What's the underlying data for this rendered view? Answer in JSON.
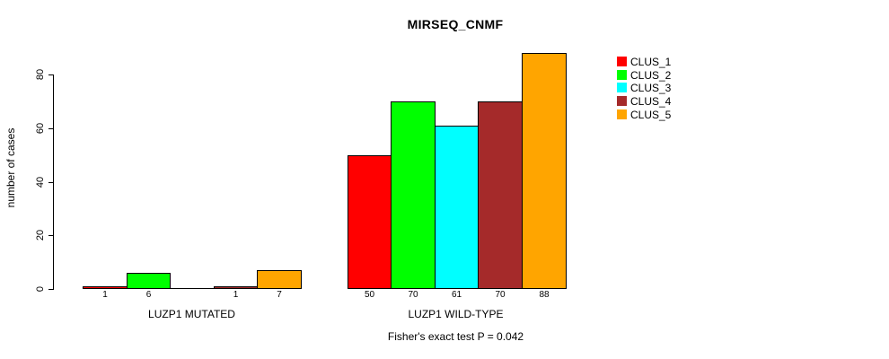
{
  "chart_data": {
    "type": "bar",
    "title": "MIRSEQ_CNMF",
    "ylabel": "number of cases",
    "xlabel": "",
    "ylim": [
      0,
      88
    ],
    "yticks": [
      0,
      20,
      40,
      60,
      80
    ],
    "grid": false,
    "legend_position": "top-right",
    "series": [
      {
        "name": "CLUS_1",
        "color": "#FF0000",
        "values": [
          1,
          50
        ]
      },
      {
        "name": "CLUS_2",
        "color": "#00FF00",
        "values": [
          6,
          70
        ]
      },
      {
        "name": "CLUS_3",
        "color": "#00FFFF",
        "values": [
          0,
          61
        ]
      },
      {
        "name": "CLUS_4",
        "color": "#A52A2A",
        "values": [
          1,
          70
        ]
      },
      {
        "name": "CLUS_5",
        "color": "#FFA500",
        "values": [
          7,
          88
        ]
      }
    ],
    "groups": [
      {
        "label": "LUZP1 MUTATED",
        "values": [
          1,
          6,
          0,
          1,
          7
        ],
        "value_labels": [
          "1",
          "6",
          "",
          "1",
          "7"
        ]
      },
      {
        "label": "LUZP1 WILD-TYPE",
        "values": [
          50,
          70,
          61,
          70,
          88
        ],
        "value_labels": [
          "50",
          "70",
          "61",
          "70",
          "88"
        ]
      }
    ],
    "annotation": "Fisher's exact test P = 0.042",
    "axis_color": "#000000",
    "background_color": "#FFFFFF"
  }
}
